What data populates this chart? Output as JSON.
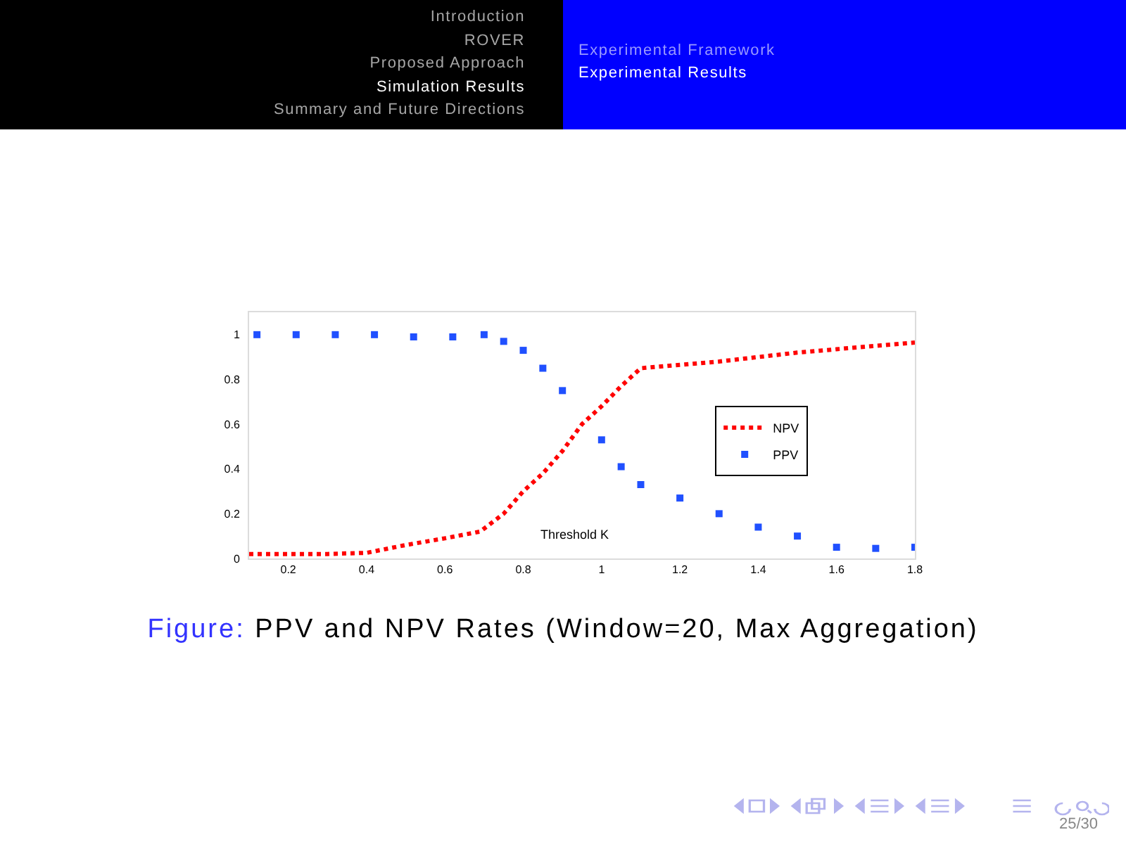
{
  "chart_data": {
    "type": "line",
    "title": "Figure: PPV and NPV Rates (Window=20, Max Aggregation)",
    "xlabel": "Threshold K",
    "xlim": [
      0.1,
      1.8
    ],
    "xticks": [
      0.2,
      0.4,
      0.6,
      0.8,
      1,
      1.2,
      1.4,
      1.6,
      1.8
    ],
    "ylim": [
      0,
      1.1
    ],
    "yticks": [
      0,
      0.2,
      0.4,
      0.6,
      0.8,
      1
    ],
    "grid": false,
    "legend": "right",
    "series": [
      {
        "name": "NPV",
        "type": "line",
        "line_style": "dotted",
        "color": "#ff0000",
        "x": [
          0.1,
          0.2,
          0.3,
          0.4,
          0.5,
          0.6,
          0.69,
          0.75,
          0.8,
          0.85,
          0.9,
          0.95,
          1.0,
          1.05,
          1.1,
          1.2,
          1.3,
          1.4,
          1.5,
          1.6,
          1.7,
          1.8
        ],
        "values": [
          0.02,
          0.02,
          0.02,
          0.025,
          0.06,
          0.09,
          0.12,
          0.2,
          0.3,
          0.38,
          0.48,
          0.6,
          0.68,
          0.77,
          0.85,
          0.865,
          0.88,
          0.9,
          0.92,
          0.935,
          0.95,
          0.965
        ]
      },
      {
        "name": "PPV",
        "type": "scatter",
        "marker": "square",
        "color": "#2050ff",
        "x": [
          0.12,
          0.22,
          0.32,
          0.42,
          0.52,
          0.62,
          0.7,
          0.75,
          0.8,
          0.85,
          0.9,
          1.0,
          1.05,
          1.1,
          1.2,
          1.3,
          1.4,
          1.5,
          1.6,
          1.7,
          1.8
        ],
        "values": [
          1,
          1,
          1,
          1,
          0.99,
          0.99,
          1,
          0.97,
          0.93,
          0.85,
          0.75,
          0.53,
          0.41,
          0.33,
          0.27,
          0.2,
          0.14,
          0.1,
          0.05,
          0.045,
          0.05
        ]
      }
    ],
    "annotations": [
      "Introduction",
      "ROVER",
      "Proposed Approach",
      "Simulation Results",
      "Summary and Future Directions",
      "Experimental Framework",
      "Experimental Results",
      "25/30"
    ]
  }
}
